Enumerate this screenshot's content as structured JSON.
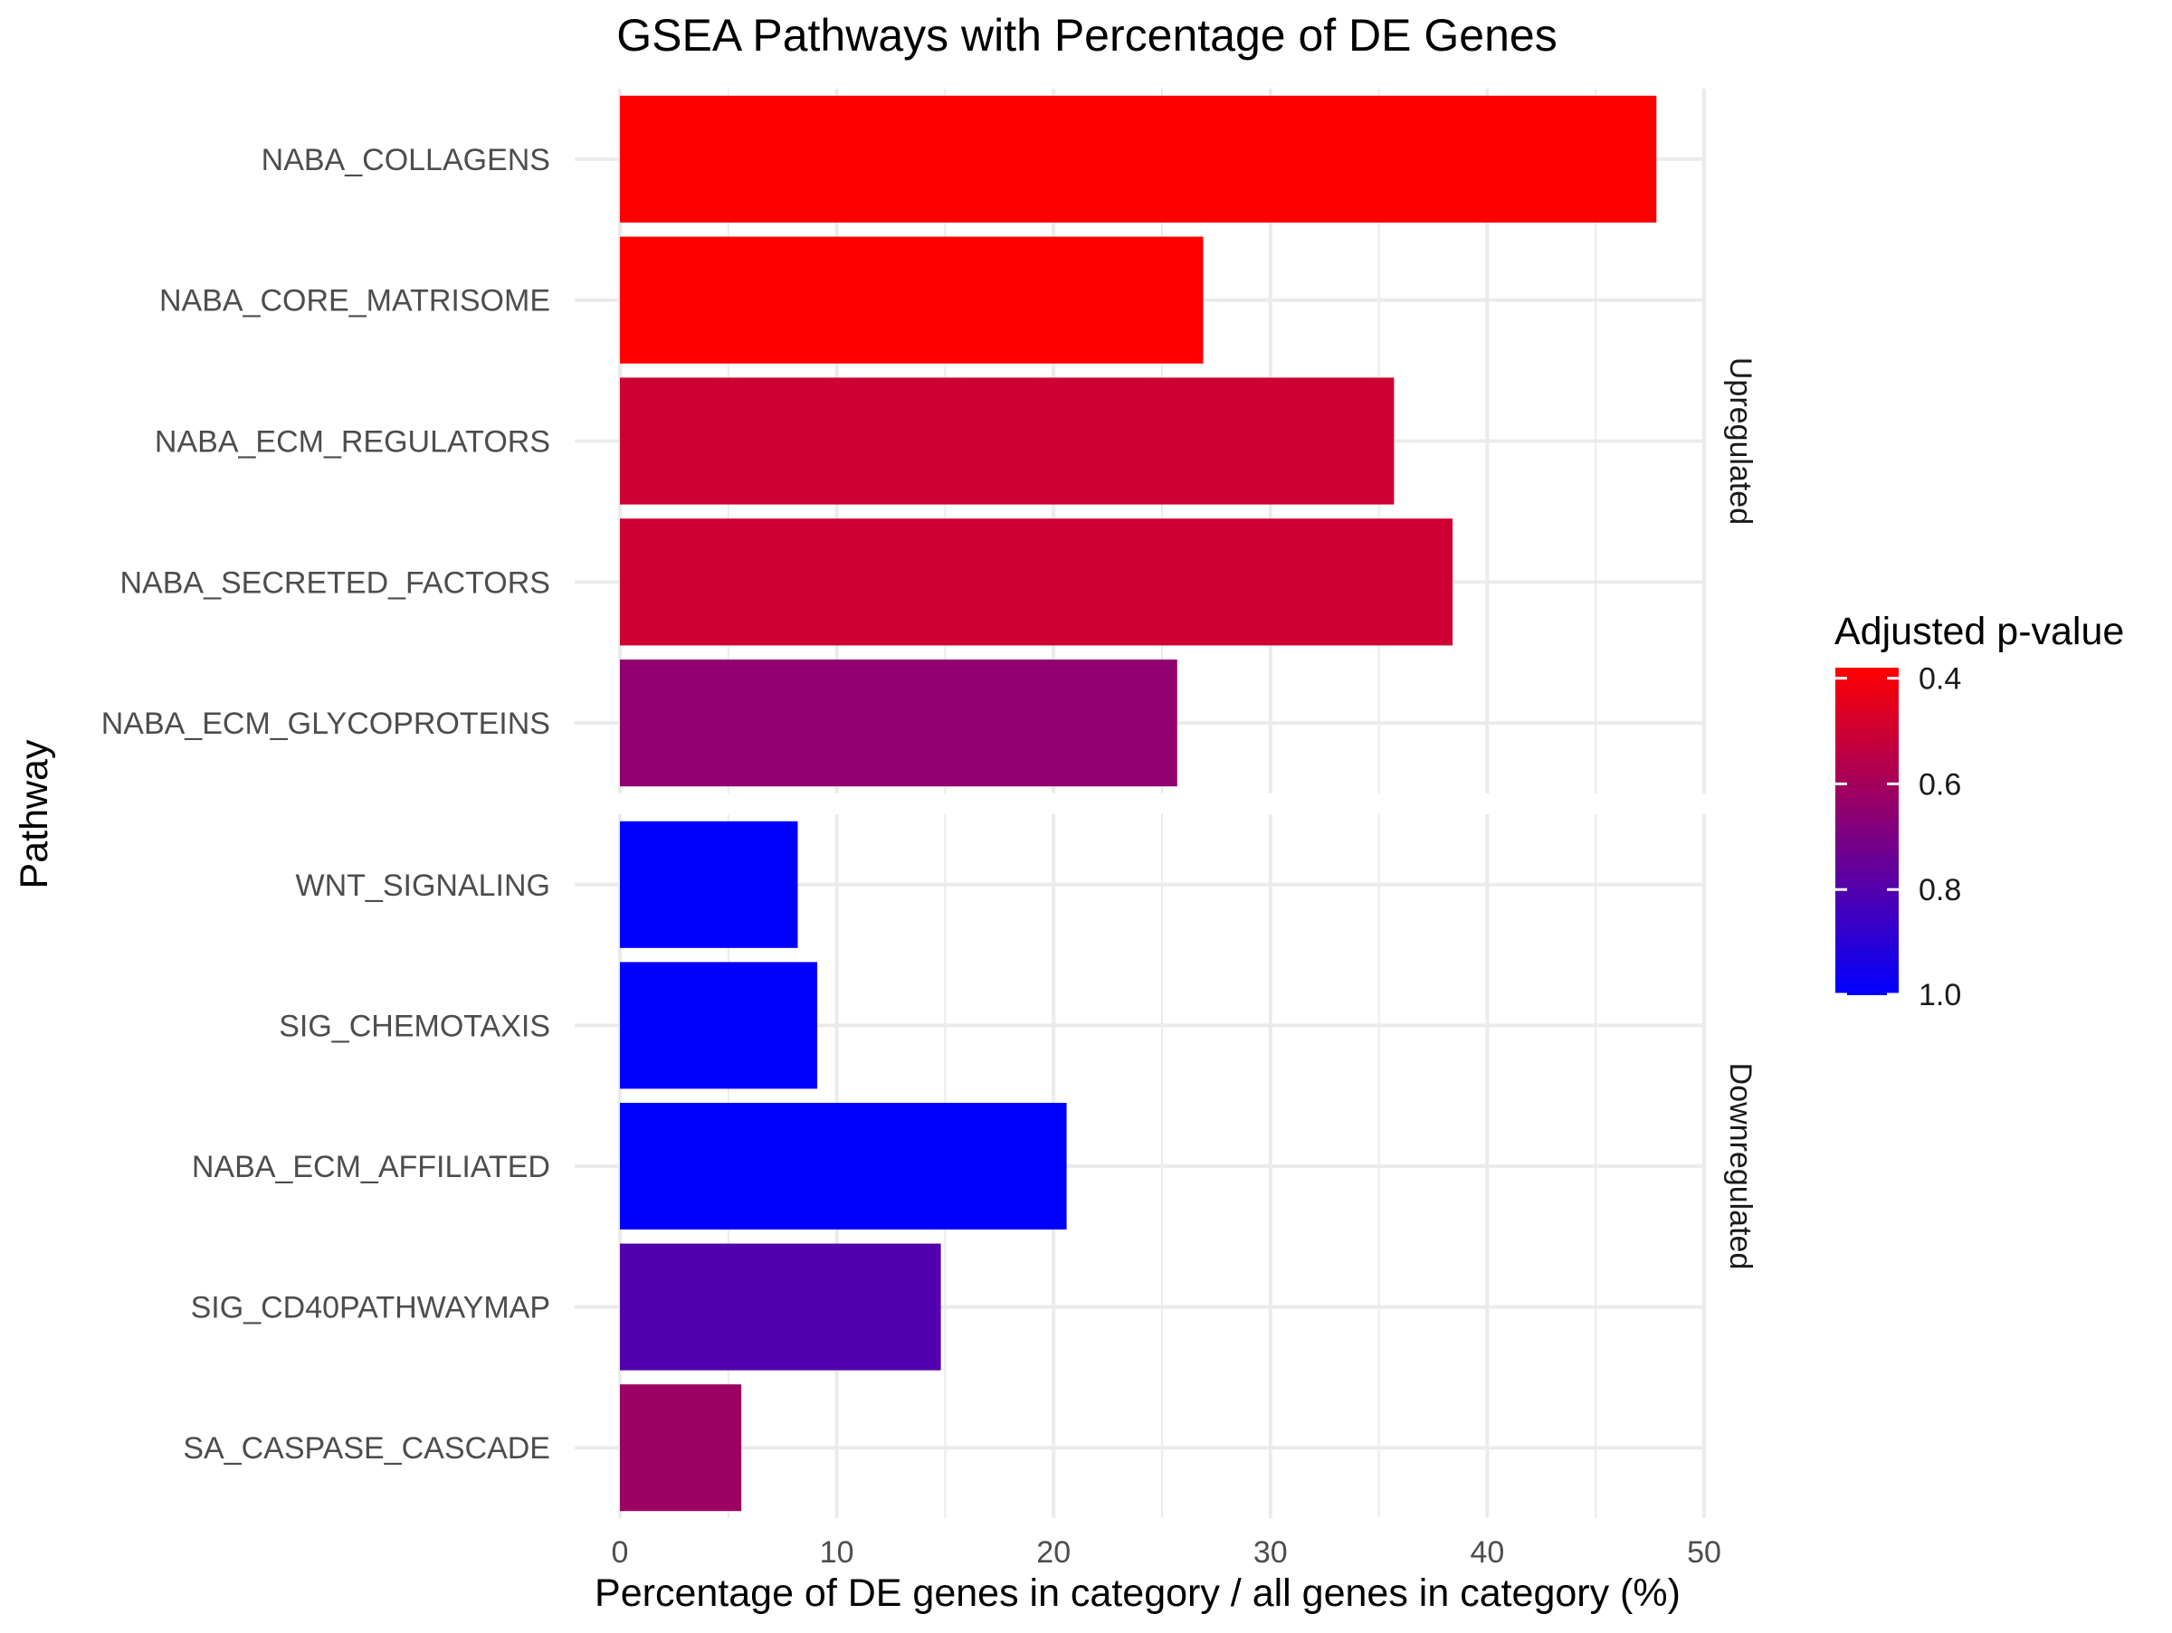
{
  "chart_data": {
    "type": "bar",
    "orientation": "horizontal",
    "title": "GSEA Pathways with Percentage of DE Genes",
    "xlabel": "Percentage of DE genes in category / all genes in category (%)",
    "ylabel": "Pathway",
    "xlim": [
      0,
      50
    ],
    "x_ticks": [
      "0",
      "10",
      "20",
      "30",
      "40",
      "50"
    ],
    "grid": true,
    "facets": [
      {
        "label": "Upregulated",
        "categories": [
          "NABA_COLLAGENS",
          "NABA_CORE_MATRISOME",
          "NABA_ECM_REGULATORS",
          "NABA_SECRETED_FACTORS",
          "NABA_ECM_GLYCOPROTEINS"
        ],
        "values": [
          47.8,
          26.9,
          35.7,
          38.4,
          25.7
        ],
        "p_adjust": [
          0.38,
          0.38,
          0.5,
          0.5,
          0.65
        ]
      },
      {
        "label": "Downregulated",
        "categories": [
          "WNT_SIGNALING",
          "SIG_CHEMOTAXIS",
          "NABA_ECM_AFFILIATED",
          "SIG_CD40PATHWAYMAP",
          "SA_CASPASE_CASCADE"
        ],
        "values": [
          8.2,
          9.1,
          20.6,
          14.8,
          5.6
        ],
        "p_adjust": [
          1.0,
          1.0,
          1.0,
          0.8,
          0.62
        ]
      }
    ],
    "legend": {
      "title": "Adjusted p-value",
      "position": "right",
      "ticks": [
        "0.4",
        "0.6",
        "0.8",
        "1.0"
      ],
      "tick_values": [
        0.4,
        0.6,
        0.8,
        1.0
      ],
      "range": [
        0.38,
        1.0
      ],
      "low_color": "#ff0000",
      "high_color": "#0000ff"
    }
  }
}
